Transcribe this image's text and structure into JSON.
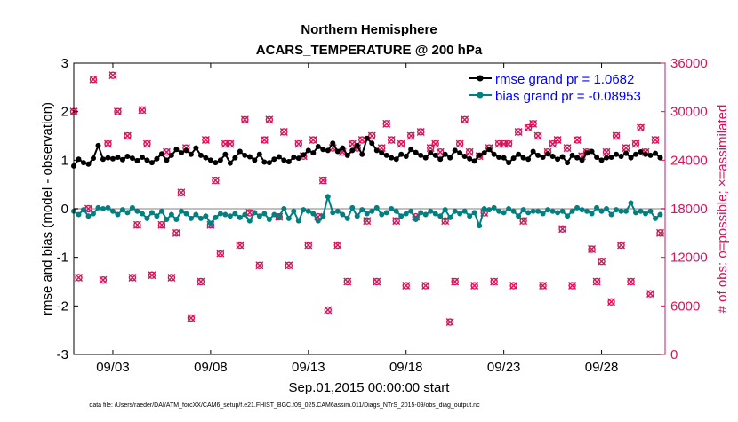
{
  "chart_data": {
    "type": "line",
    "title": "Northern Hemisphere",
    "subtitle": "ACARS_TEMPERATURE @ 200 hPa",
    "xlabel": "Sep.01,2015 00:00:00 start",
    "ylabel_left": "rmse and bias (model - observation)",
    "ylabel_right": "# of obs: o=possible; ×=assimilated",
    "footnote": "data file: /Users/raeder/DAI/ATM_forcXX/CAM6_setup/f.e21.FHIST_BGC.f09_025.CAM6assim.011/Diags_NTrS_2015-09/obs_diag_output.nc",
    "xlim": [
      0,
      30.25
    ],
    "ylim_left": [
      -3,
      3
    ],
    "ylim_right": [
      0,
      36000
    ],
    "x_ticks": [
      2,
      7,
      12,
      17,
      22,
      27
    ],
    "x_tick_labels": [
      "09/03",
      "09/08",
      "09/13",
      "09/18",
      "09/23",
      "09/28"
    ],
    "y_left_ticks": [
      -3,
      -2,
      -1,
      0,
      1,
      2,
      3
    ],
    "y_left_tick_labels": [
      "-3",
      "-2",
      "-1",
      "0",
      "1",
      "2",
      "3"
    ],
    "y_right_ticks": [
      0,
      6000,
      12000,
      18000,
      24000,
      30000,
      36000
    ],
    "y_right_tick_labels": [
      "0",
      "6000",
      "12000",
      "18000",
      "24000",
      "30000",
      "36000"
    ],
    "zero_line": 0,
    "colors": {
      "rmse": "#000000",
      "bias": "#008080",
      "obs": "#d6145a",
      "zero": "#c0c0c0"
    },
    "legend_position": "top-right",
    "series": [
      {
        "name": "rmse",
        "legend_label": "rmse grand pr = 1.0682",
        "axis": "left",
        "marker": "dot",
        "x": [
          0,
          0.25,
          0.5,
          0.75,
          1.0,
          1.25,
          1.5,
          1.75,
          2.0,
          2.25,
          2.5,
          2.75,
          3.0,
          3.25,
          3.5,
          3.75,
          4.0,
          4.25,
          4.5,
          4.75,
          5.0,
          5.25,
          5.5,
          5.75,
          6.0,
          6.25,
          6.5,
          6.75,
          7.0,
          7.25,
          7.5,
          7.75,
          8.0,
          8.25,
          8.5,
          8.75,
          9.0,
          9.25,
          9.5,
          9.75,
          10.0,
          10.25,
          10.5,
          10.75,
          11.0,
          11.25,
          11.5,
          11.75,
          12.0,
          12.25,
          12.5,
          12.75,
          13.0,
          13.25,
          13.5,
          13.75,
          14.0,
          14.25,
          14.5,
          14.75,
          15.0,
          15.25,
          15.5,
          15.75,
          16.0,
          16.25,
          16.5,
          16.75,
          17.0,
          17.25,
          17.5,
          17.75,
          18.0,
          18.25,
          18.5,
          18.75,
          19.0,
          19.25,
          19.5,
          19.75,
          20.0,
          20.25,
          20.5,
          20.75,
          21.0,
          21.25,
          21.5,
          21.75,
          22.0,
          22.25,
          22.5,
          22.75,
          23.0,
          23.25,
          23.5,
          23.75,
          24.0,
          24.25,
          24.5,
          24.75,
          25.0,
          25.25,
          25.5,
          25.75,
          26.0,
          26.25,
          26.5,
          26.75,
          27.0,
          27.25,
          27.5,
          27.75,
          28.0,
          28.25,
          28.5,
          28.75,
          29.0,
          29.25,
          29.5,
          29.75,
          30.0
        ],
        "values": [
          0.88,
          1.02,
          0.95,
          0.92,
          1.04,
          1.3,
          1.02,
          1.05,
          1.03,
          1.06,
          1.01,
          1.08,
          1.04,
          0.99,
          1.06,
          1.0,
          0.95,
          1.03,
          1.13,
          1.0,
          1.1,
          1.22,
          1.15,
          1.2,
          1.12,
          1.25,
          1.1,
          1.05,
          1.0,
          0.95,
          1.0,
          1.12,
          0.94,
          1.05,
          1.18,
          1.1,
          1.07,
          1.0,
          1.12,
          0.96,
          0.95,
          1.02,
          1.07,
          1.0,
          0.97,
          1.06,
          1.04,
          1.11,
          1.2,
          1.15,
          1.28,
          1.22,
          1.2,
          1.35,
          1.18,
          1.25,
          1.1,
          1.2,
          1.3,
          1.12,
          1.45,
          1.35,
          1.2,
          1.15,
          1.1,
          1.05,
          1.02,
          1.12,
          1.08,
          1.22,
          1.16,
          1.1,
          1.05,
          1.15,
          1.1,
          1.02,
          1.12,
          1.05,
          1.2,
          1.15,
          1.08,
          1.03,
          0.98,
          1.1,
          1.15,
          1.22,
          1.12,
          1.06,
          1.05,
          0.95,
          1.04,
          1.12,
          1.05,
          1.02,
          1.18,
          1.1,
          1.06,
          1.13,
          1.08,
          1.02,
          1.07,
          0.95,
          1.1,
          1.05,
          1.0,
          1.15,
          1.18,
          1.06,
          1.0,
          1.05,
          1.06,
          1.12,
          1.08,
          1.14,
          1.05,
          1.12,
          1.17,
          1.12,
          1.1,
          1.14,
          1.05
        ]
      },
      {
        "name": "bias",
        "legend_label": "bias grand pr = -0.08953",
        "axis": "left",
        "marker": "dot",
        "x": [
          0,
          0.25,
          0.5,
          0.75,
          1.0,
          1.25,
          1.5,
          1.75,
          2.0,
          2.25,
          2.5,
          2.75,
          3.0,
          3.25,
          3.5,
          3.75,
          4.0,
          4.25,
          4.5,
          4.75,
          5.0,
          5.25,
          5.5,
          5.75,
          6.0,
          6.25,
          6.5,
          6.75,
          7.0,
          7.25,
          7.5,
          7.75,
          8.0,
          8.25,
          8.5,
          8.75,
          9.0,
          9.25,
          9.5,
          9.75,
          10.0,
          10.25,
          10.5,
          10.75,
          11.0,
          11.25,
          11.5,
          11.75,
          12.0,
          12.25,
          12.5,
          12.75,
          13.0,
          13.25,
          13.5,
          13.75,
          14.0,
          14.25,
          14.5,
          14.75,
          15.0,
          15.25,
          15.5,
          15.75,
          16.0,
          16.25,
          16.5,
          16.75,
          17.0,
          17.25,
          17.5,
          17.75,
          18.0,
          18.25,
          18.5,
          18.75,
          19.0,
          19.25,
          19.5,
          19.75,
          20.0,
          20.25,
          20.5,
          20.75,
          21.0,
          21.25,
          21.5,
          21.75,
          22.0,
          22.25,
          22.5,
          22.75,
          23.0,
          23.25,
          23.5,
          23.75,
          24.0,
          24.25,
          24.5,
          24.75,
          25.0,
          25.25,
          25.5,
          25.75,
          26.0,
          26.25,
          26.5,
          26.75,
          27.0,
          27.25,
          27.5,
          27.75,
          28.0,
          28.25,
          28.5,
          28.75,
          29.0,
          29.25,
          29.5,
          29.75,
          30.0
        ],
        "values": [
          -0.05,
          -0.12,
          -0.02,
          -0.15,
          -0.1,
          0.02,
          0.0,
          0.02,
          -0.05,
          -0.12,
          -0.02,
          -0.08,
          0.02,
          -0.05,
          -0.1,
          -0.2,
          -0.08,
          -0.15,
          -0.05,
          -0.22,
          -0.12,
          -0.22,
          -0.05,
          -0.1,
          -0.2,
          -0.12,
          -0.2,
          -0.15,
          -0.3,
          -0.18,
          -0.1,
          -0.12,
          -0.15,
          -0.1,
          -0.18,
          -0.12,
          -0.25,
          -0.08,
          -0.15,
          -0.1,
          -0.22,
          -0.12,
          -0.15,
          0.0,
          -0.2,
          -0.05,
          -0.25,
          -0.02,
          -0.05,
          -0.1,
          -0.25,
          -0.15,
          0.25,
          -0.08,
          -0.05,
          -0.12,
          -0.2,
          0.02,
          -0.15,
          -0.02,
          -0.1,
          -0.05,
          0.02,
          -0.12,
          -0.08,
          0.0,
          -0.05,
          -0.15,
          -0.1,
          -0.05,
          -0.22,
          -0.08,
          -0.12,
          -0.05,
          -0.1,
          -0.15,
          -0.02,
          -0.18,
          -0.05,
          -0.1,
          -0.05,
          -0.15,
          -0.08,
          -0.35,
          0.0,
          -0.02,
          0.02,
          -0.05,
          -0.08,
          0.0,
          -0.05,
          -0.15,
          -0.02,
          -0.08,
          -0.05,
          -0.05,
          -0.1,
          -0.02,
          -0.05,
          -0.08,
          -0.05,
          -0.15,
          -0.05,
          0.02,
          -0.02,
          -0.05,
          -0.1,
          0.02,
          -0.05,
          0.0,
          -0.12,
          -0.02,
          -0.05,
          -0.05,
          0.12,
          -0.08,
          -0.05,
          -0.1,
          -0.05,
          -0.2,
          -0.12
        ]
      },
      {
        "name": "obs_possible",
        "axis": "right",
        "marker": "circle",
        "x": [
          0.0,
          0.25,
          1.0,
          1.5,
          2.0,
          2.25,
          3.0,
          3.25,
          3.5,
          4.0,
          4.5,
          5.0,
          5.25,
          5.5,
          6.0,
          6.5,
          7.0,
          7.25,
          7.5,
          8.0,
          8.5,
          9.0,
          9.5,
          10.0,
          10.5,
          11.0,
          11.5,
          12.0,
          12.5,
          12.75,
          13.0,
          13.5,
          14.0,
          14.5,
          15.0,
          15.5,
          16.0,
          16.5,
          17.0,
          17.5,
          18.0,
          18.5,
          19.0,
          19.25,
          19.5,
          20.0,
          20.5,
          21.0,
          21.5,
          22.0,
          22.5,
          23.0,
          23.5,
          24.0,
          24.5,
          25.0,
          25.5,
          26.0,
          26.5,
          26.75,
          27.0,
          27.5,
          28.0,
          28.5,
          29.0,
          29.5,
          30.0
        ],
        "values": [
          30000,
          9500,
          34000,
          9200,
          34500,
          30000,
          9500,
          16000,
          30200,
          9800,
          16000,
          9500,
          15000,
          20000,
          4500,
          9000,
          16000,
          21500,
          12500,
          26000,
          13500,
          17500,
          11000,
          29000,
          17000,
          11000,
          26000,
          13500,
          17000,
          21500,
          5500,
          13500,
          9000,
          25500,
          16500,
          9000,
          28500,
          16500,
          8500,
          17000,
          8500,
          26000,
          16500,
          4000,
          9000,
          29000,
          8500,
          17500,
          9000,
          26000,
          8500,
          16500,
          28500,
          8500,
          26000,
          15500,
          8500,
          24500,
          13000,
          9000,
          11500,
          6500,
          13500,
          9000,
          28000,
          7500,
          15000
        ],
        "label": "o=possible"
      },
      {
        "name": "obs_assimilated",
        "axis": "right",
        "marker": "cross",
        "x": [
          0.0,
          0.25,
          1.0,
          1.5,
          2.0,
          2.25,
          3.0,
          3.25,
          3.5,
          4.0,
          4.5,
          5.0,
          5.25,
          5.5,
          6.0,
          6.5,
          7.0,
          7.25,
          7.5,
          8.0,
          8.5,
          9.0,
          9.5,
          10.0,
          10.5,
          11.0,
          11.5,
          12.0,
          12.5,
          12.75,
          13.0,
          13.5,
          14.0,
          14.5,
          15.0,
          15.5,
          16.0,
          16.5,
          17.0,
          17.5,
          18.0,
          18.5,
          19.0,
          19.25,
          19.5,
          20.0,
          20.5,
          21.0,
          21.5,
          22.0,
          22.5,
          23.0,
          23.5,
          24.0,
          24.5,
          25.0,
          25.5,
          26.0,
          26.5,
          26.75,
          27.0,
          27.5,
          28.0,
          28.5,
          29.0,
          29.5,
          30.0
        ],
        "values": [
          30000,
          9500,
          34000,
          9200,
          34500,
          30000,
          9500,
          16000,
          30200,
          9800,
          16000,
          9500,
          15000,
          20000,
          4500,
          9000,
          16000,
          21500,
          12500,
          26000,
          13500,
          17500,
          11000,
          29000,
          17000,
          11000,
          26000,
          13500,
          17000,
          21500,
          5500,
          13500,
          9000,
          25500,
          16500,
          9000,
          28500,
          16500,
          8500,
          17000,
          8500,
          26000,
          16500,
          4000,
          9000,
          29000,
          8500,
          17500,
          9000,
          26000,
          8500,
          16500,
          28500,
          8500,
          26000,
          15500,
          8500,
          24500,
          13000,
          9000,
          11500,
          6500,
          13500,
          9000,
          28000,
          7500,
          15000
        ],
        "label": "×=assimilated"
      },
      {
        "name": "obs_possible_upper",
        "axis": "right",
        "marker": "circle",
        "x": [
          0.75,
          1.75,
          2.75,
          3.75,
          4.75,
          5.75,
          6.75,
          7.75,
          8.75,
          9.75,
          10.75,
          11.75,
          12.25,
          13.25,
          13.75,
          14.25,
          14.75,
          15.25,
          15.75,
          16.25,
          16.75,
          17.25,
          17.75,
          18.25,
          18.75,
          19.75,
          20.25,
          20.75,
          21.25,
          21.75,
          22.25,
          22.75,
          23.25,
          23.75,
          24.25,
          24.75,
          25.25,
          25.75,
          26.25,
          27.25,
          27.75,
          28.25,
          28.75,
          29.25,
          29.75
        ],
        "values": [
          18000,
          26000,
          27000,
          26000,
          25000,
          25500,
          26500,
          26000,
          29000,
          26500,
          27500,
          24500,
          26500,
          25500,
          25000,
          26000,
          26500,
          27000,
          25500,
          26500,
          26000,
          27000,
          27500,
          25500,
          25000,
          26000,
          25000,
          24500,
          25500,
          26000,
          26000,
          27500,
          28000,
          27000,
          25000,
          26500,
          25500,
          26500,
          25000,
          25000,
          27000,
          25500,
          26000,
          25000,
          26500
        ]
      }
    ]
  }
}
